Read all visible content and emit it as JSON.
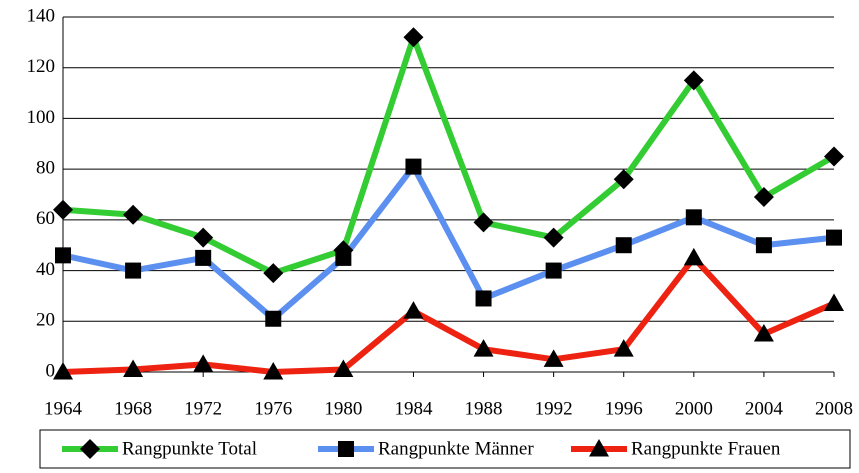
{
  "chart_data": {
    "type": "line",
    "categories": [
      "1964",
      "1968",
      "1972",
      "1976",
      "1980",
      "1984",
      "1988",
      "1992",
      "1996",
      "2000",
      "2004",
      "2008"
    ],
    "series": [
      {
        "name": "Rangpunkte Total",
        "color": "#33cc33",
        "marker": "diamond",
        "values": [
          64,
          62,
          53,
          39,
          48,
          132,
          59,
          53,
          76,
          115,
          69,
          85
        ]
      },
      {
        "name": "Rangpunkte Männer",
        "color": "#5b8ff0",
        "marker": "square",
        "values": [
          46,
          40,
          45,
          21,
          45,
          81,
          29,
          40,
          50,
          61,
          50,
          53
        ]
      },
      {
        "name": "Rangpunkte Frauen",
        "color": "#ee2211",
        "marker": "triangle",
        "values": [
          0,
          1,
          3,
          0,
          1,
          24,
          9,
          5,
          9,
          45,
          15,
          27
        ]
      }
    ],
    "ylim": [
      0,
      140
    ],
    "yticks": [
      0,
      20,
      40,
      60,
      80,
      100,
      120,
      140
    ],
    "grid": true,
    "legend": "bottom"
  }
}
